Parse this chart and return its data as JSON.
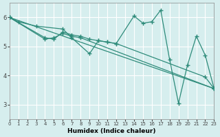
{
  "xlabel": "Humidex (Indice chaleur)",
  "ylabel": "",
  "background_color": "#d6eeee",
  "grid_color": "#ffffff",
  "line_color": "#2e8b7a",
  "xlim": [
    0,
    23
  ],
  "ylim": [
    2.5,
    6.5
  ],
  "yticks": [
    3,
    4,
    5,
    6
  ],
  "xticks": [
    0,
    1,
    2,
    3,
    4,
    5,
    6,
    7,
    8,
    9,
    10,
    11,
    12,
    13,
    14,
    15,
    16,
    17,
    18,
    19,
    20,
    21,
    22,
    23
  ],
  "series": [
    {
      "x": [
        0,
        1,
        3,
        6,
        7,
        9,
        10,
        11,
        12,
        14,
        15,
        16,
        17,
        18,
        19,
        20,
        21,
        22,
        23
      ],
      "y": [
        6.0,
        5.85,
        5.7,
        5.6,
        5.3,
        4.75,
        5.2,
        5.15,
        5.1,
        6.05,
        5.8,
        5.85,
        6.25,
        4.55,
        3.05,
        4.35,
        5.35,
        4.7,
        3.55
      ]
    },
    {
      "x": [
        0,
        4,
        5,
        6,
        7,
        8,
        9,
        10,
        11,
        12,
        22,
        23
      ],
      "y": [
        6.0,
        5.3,
        5.25,
        5.5,
        5.4,
        5.35,
        5.25,
        5.2,
        5.15,
        5.1,
        3.95,
        3.55
      ]
    },
    {
      "x": [
        0,
        4,
        5,
        6,
        7,
        8,
        23
      ],
      "y": [
        6.0,
        5.25,
        5.3,
        5.45,
        5.35,
        5.3,
        3.55
      ]
    },
    {
      "x": [
        0,
        23
      ],
      "y": [
        6.0,
        3.55
      ]
    }
  ]
}
